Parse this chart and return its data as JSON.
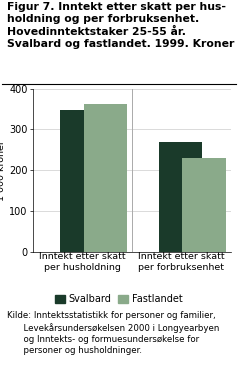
{
  "title": "Figur 7. Inntekt etter skatt per hus-\nholdning og per forbruksenhet.\nHovedinntektstaker 25-55 år.\nSvalbard og fastlandet. 1999. Kroner",
  "ylabel": "1 000 kroner",
  "groups": [
    "Inntekt etter skatt\nper husholdning",
    "Inntekt etter skatt\nper forbruksenhet"
  ],
  "series": [
    "Svalbard",
    "Fastlandet"
  ],
  "values": [
    [
      348,
      362
    ],
    [
      270,
      230
    ]
  ],
  "bar_colors": [
    "#1a3a2a",
    "#8aaa8a"
  ],
  "ylim": [
    0,
    400
  ],
  "yticks": [
    0,
    100,
    200,
    300,
    400
  ],
  "source": "Kilde: Inntektsstatistikk for personer og familier,\n      Levekårsundersøkelsen 2000 i Longyearbyen\n      og Inntekts- og formuesundersøkelse for\n      personer og husholdninger.",
  "background_color": "#ffffff",
  "title_fontsize": 7.8,
  "axis_fontsize": 6.8,
  "tick_fontsize": 7.0,
  "legend_fontsize": 7.0,
  "source_fontsize": 6.2
}
